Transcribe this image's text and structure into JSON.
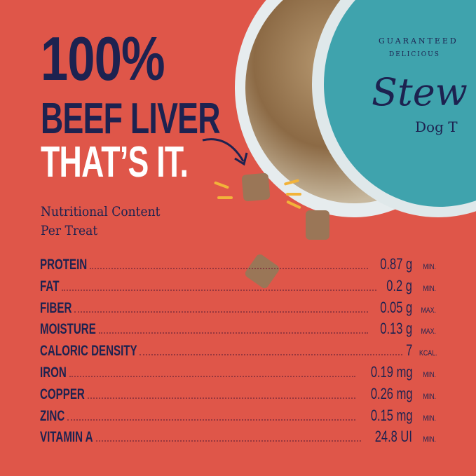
{
  "headline": {
    "line1": "100%",
    "line2": "BEEF LIVER",
    "line3": "THAT’S IT."
  },
  "subtitle": {
    "line1": "Nutritional Content",
    "line2": "Per Treat"
  },
  "brand": {
    "tagline1": "GUARANTEED",
    "tagline2": "DELICIOUS",
    "name": "Stew",
    "product": "Dog T"
  },
  "nutrients": [
    {
      "label": "PROTEIN",
      "value": "0.87 g",
      "unit": "MIN."
    },
    {
      "label": "FAT",
      "value": "0.2 g",
      "unit": "MIN."
    },
    {
      "label": "FIBER",
      "value": "0.05 g",
      "unit": "MAX."
    },
    {
      "label": "MOISTURE",
      "value": "0.13 g",
      "unit": "MAX."
    },
    {
      "label": "CALORIC DENSITY",
      "value": "7",
      "unit": "KCAL."
    },
    {
      "label": "IRON",
      "value": "0.19 mg",
      "unit": "MIN."
    },
    {
      "label": "COPPER",
      "value": "0.26 mg",
      "unit": "MIN."
    },
    {
      "label": "ZINC",
      "value": "0.15 mg",
      "unit": "MIN."
    },
    {
      "label": "VITAMIN A",
      "value": "24.8 UI",
      "unit": "MIN."
    }
  ],
  "colors": {
    "background": "#df5649",
    "navy": "#1d2250",
    "teal": "#3fa3ad",
    "accent": "#f2b33a"
  }
}
